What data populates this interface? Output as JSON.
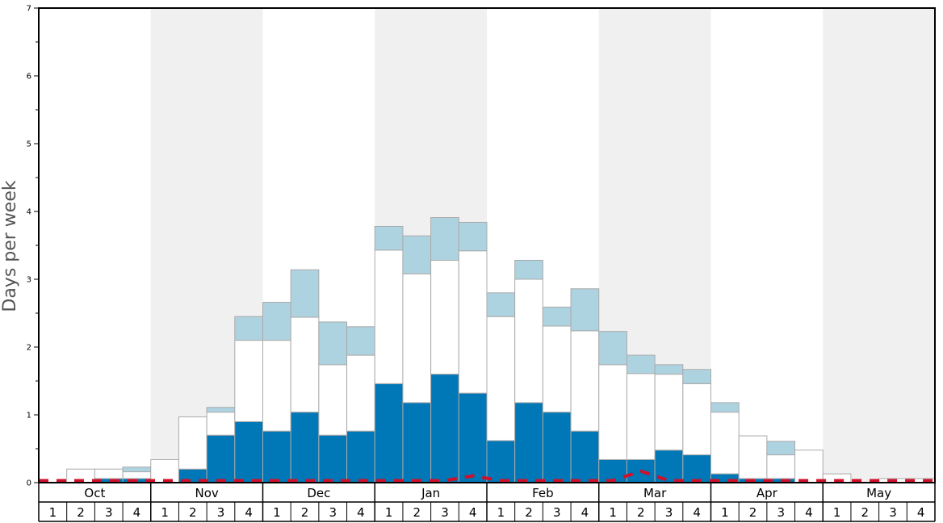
{
  "chart_data": {
    "type": "bar",
    "stacked": true,
    "ylabel": "Days per week",
    "ylim": [
      0,
      7
    ],
    "yticks": [
      0,
      1,
      2,
      3,
      4,
      5,
      6,
      7
    ],
    "months": [
      "Oct",
      "Nov",
      "Dec",
      "Jan",
      "Feb",
      "Mar",
      "Apr",
      "May"
    ],
    "weeks_per_month": [
      "1",
      "2",
      "3",
      "4"
    ],
    "colors": {
      "dark": "#0077b6",
      "white": "#ffffff",
      "light": "#aed3e0",
      "band": "#f0f0f0",
      "bar_stroke": "#aaaaaa",
      "line": "#d0102a"
    },
    "series": [
      {
        "values": [
          0,
          0,
          0.06,
          0.06,
          0,
          0.2,
          0.7,
          0.9,
          0.76,
          1.04,
          0.7,
          0.76,
          1.46,
          1.18,
          1.6,
          1.32,
          0.62,
          1.18,
          1.04,
          0.76,
          0.34,
          0.34,
          0.48,
          0.41,
          0.13,
          0.06,
          0.06,
          0,
          0,
          0,
          0,
          0
        ]
      },
      {
        "values": [
          0,
          0.2,
          0.14,
          0.1,
          0.34,
          0.77,
          0.34,
          1.2,
          1.34,
          1.4,
          1.04,
          1.12,
          1.97,
          1.9,
          1.68,
          2.1,
          1.83,
          1.82,
          1.27,
          1.48,
          1.4,
          1.27,
          1.12,
          1.05,
          0.91,
          0.63,
          0.35,
          0.48,
          0.13,
          0,
          0.06,
          0.06
        ]
      },
      {
        "values": [
          0,
          0,
          0,
          0.07,
          0,
          0,
          0.07,
          0.35,
          0.56,
          0.7,
          0.63,
          0.42,
          0.35,
          0.56,
          0.63,
          0.42,
          0.35,
          0.28,
          0.28,
          0.62,
          0.49,
          0.27,
          0.14,
          0.21,
          0.14,
          0,
          0.2,
          0,
          0,
          0,
          0,
          0
        ]
      },
      {
        "values": [
          0.03,
          0.03,
          0.03,
          0.03,
          0.03,
          0.03,
          0.03,
          0.03,
          0.03,
          0.03,
          0.03,
          0.03,
          0.03,
          0.03,
          0.03,
          0.1,
          0.03,
          0.03,
          0.03,
          0.03,
          0.03,
          0.17,
          0.03,
          0.03,
          0.03,
          0.03,
          0.03,
          0.03,
          0.03,
          0.03,
          0.03,
          0.03
        ]
      }
    ]
  }
}
